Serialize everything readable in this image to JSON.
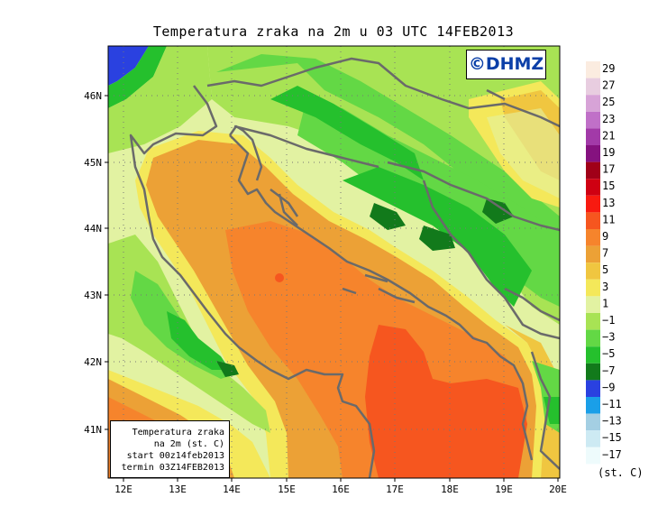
{
  "title": "Temperatura zraka na 2m u 03 UTC 14FEB2013",
  "watermark": "©DHMZ",
  "infobox": {
    "line1": "Temperatura zraka",
    "line2": "na 2m (st. C)",
    "line3": "start 00z14feb2013",
    "line4": "termin 03Z14FEB2013"
  },
  "map": {
    "lat_labels": [
      "46N",
      "45N",
      "44N",
      "43N",
      "42N",
      "41N"
    ],
    "lon_labels": [
      "12E",
      "13E",
      "14E",
      "15E",
      "16E",
      "17E",
      "18E",
      "19E",
      "20E"
    ]
  },
  "legend": {
    "unit": "(st. C)",
    "labels": [
      "29",
      "27",
      "25",
      "23",
      "21",
      "19",
      "17",
      "15",
      "13",
      "11",
      "9",
      "7",
      "5",
      "3",
      "1",
      "−1",
      "−3",
      "−5",
      "−7",
      "−9",
      "−11",
      "−13",
      "−15",
      "−17"
    ],
    "colors": [
      "#fbece0",
      "#e8cde0",
      "#d7a3d7",
      "#c070c8",
      "#a23aa8",
      "#85127f",
      "#a00018",
      "#cf0012",
      "#f81a10",
      "#f6561f",
      "#f6842c",
      "#eca136",
      "#f0c640",
      "#f4e85a",
      "#e2f2a2",
      "#a8e354",
      "#63d845",
      "#25c02d",
      "#127a1b",
      "#2a41e0",
      "#1a9fe8",
      "#a4cfe3",
      "#cdeaf3",
      "#eefbfc"
    ]
  },
  "colors": {
    "coast": "#6a6a6a",
    "warm_sea": "#f6842c",
    "warmest": "#f6561f",
    "mild": "#eca136"
  }
}
